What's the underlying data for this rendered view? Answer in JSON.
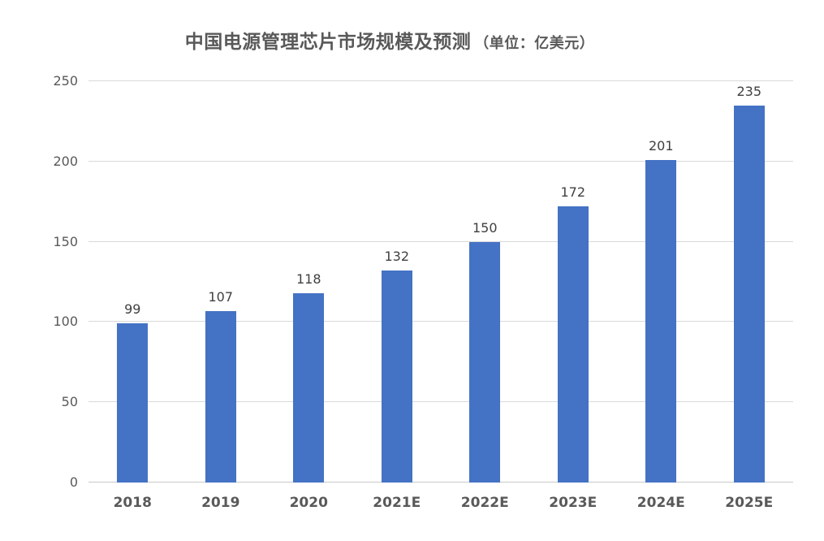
{
  "chart_data": {
    "type": "bar",
    "title": "中国电源管理芯片市场规模及预测",
    "unit_label": "（单位：亿美元）",
    "categories": [
      "2018",
      "2019",
      "2020",
      "2021E",
      "2022E",
      "2023E",
      "2024E",
      "2025E"
    ],
    "values": [
      99,
      107,
      118,
      132,
      150,
      172,
      201,
      235
    ],
    "yticks": [
      0,
      50,
      100,
      150,
      200,
      250
    ],
    "ylim": [
      0,
      250
    ],
    "grid": true,
    "legend": "none",
    "colors": {
      "bar": "#4472C4",
      "axis_text": "#595959",
      "value_label": "#404040",
      "gridline": "#D9D9D9",
      "baseline": "#C9C9C9",
      "background": "#FFFFFF"
    }
  }
}
